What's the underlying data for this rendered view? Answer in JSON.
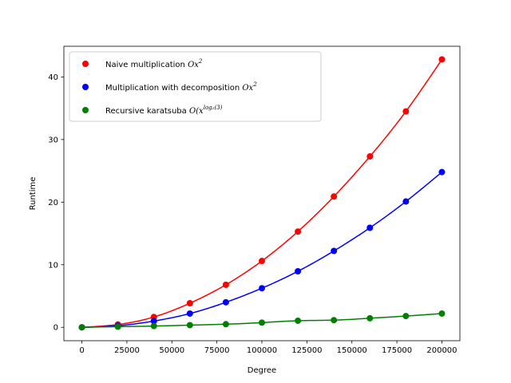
{
  "chart_data": {
    "type": "line",
    "title": "",
    "xlabel": "Degree",
    "ylabel": "Runtime",
    "xlim": [
      -10000,
      210000
    ],
    "ylim": [
      -2.14,
      44.9
    ],
    "xticks": [
      0,
      25000,
      50000,
      75000,
      100000,
      125000,
      150000,
      175000,
      200000
    ],
    "yticks": [
      0,
      10,
      20,
      30,
      40
    ],
    "grid": false,
    "legend_position": "top-left",
    "x": [
      0,
      20000,
      40000,
      60000,
      80000,
      100000,
      120000,
      140000,
      160000,
      180000,
      200000
    ],
    "series": [
      {
        "name": "Naive multiplication",
        "formula": "Ox",
        "formula_sup": "2",
        "color": "#ff0000",
        "values": [
          0.0,
          0.45,
          1.65,
          3.85,
          6.8,
          10.6,
          15.3,
          20.9,
          27.3,
          34.5,
          42.8
        ]
      },
      {
        "name": "Multiplication with decomposition",
        "formula": "Ox",
        "formula_sup": "2",
        "color": "#0000ff",
        "values": [
          0.0,
          0.25,
          1.0,
          2.2,
          4.0,
          6.25,
          8.95,
          12.2,
          15.9,
          20.1,
          24.8
        ]
      },
      {
        "name": "Recursive karatsuba",
        "formula": "O(x",
        "formula_sup": "log₂(3)",
        "color": "#008000",
        "values": [
          0.0,
          0.1,
          0.2,
          0.35,
          0.5,
          0.75,
          1.05,
          1.15,
          1.45,
          1.8,
          2.2
        ]
      }
    ]
  }
}
